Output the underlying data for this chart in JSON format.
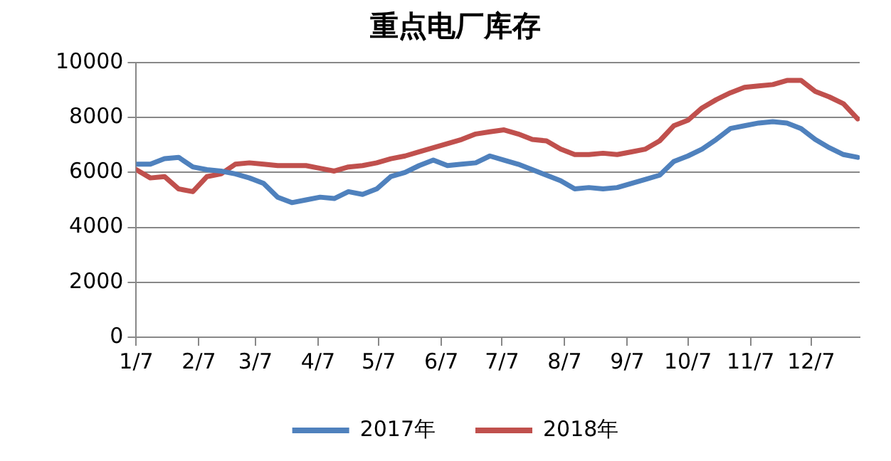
{
  "chart_data": {
    "type": "line",
    "title": "重点电厂库存",
    "x": [
      "--01-07",
      "--01-14",
      "--01-21",
      "--01-28",
      "--02-04",
      "--02-11",
      "--02-18",
      "--02-25",
      "--03-04",
      "--03-11",
      "--03-18",
      "--03-25",
      "--04-01",
      "--04-08",
      "--04-15",
      "--04-22",
      "--04-29",
      "--05-06",
      "--05-13",
      "--05-20",
      "--05-27",
      "--06-03",
      "--06-10",
      "--06-17",
      "--06-24",
      "--07-01",
      "--07-08",
      "--07-15",
      "--07-22",
      "--07-29",
      "--08-05",
      "--08-12",
      "--08-19",
      "--08-26",
      "--09-02",
      "--09-09",
      "--09-16",
      "--09-23",
      "--09-30",
      "--10-07",
      "--10-14",
      "--10-21",
      "--10-28",
      "--11-04",
      "--11-11",
      "--11-18",
      "--11-25",
      "--12-02",
      "--12-09",
      "--12-16",
      "--12-23",
      "--12-30"
    ],
    "series": [
      {
        "name": "2017年",
        "color": "#4f81bd",
        "values": [
          6300,
          6300,
          6500,
          6550,
          6200,
          6100,
          6050,
          5950,
          5800,
          5600,
          5100,
          4900,
          5000,
          5100,
          5050,
          5300,
          5200,
          5400,
          5850,
          6000,
          6250,
          6450,
          6250,
          6300,
          6350,
          6600,
          6450,
          6300,
          6100,
          5900,
          5700,
          5400,
          5450,
          5400,
          5450,
          5600,
          5750,
          5900,
          6400,
          6600,
          6850,
          7200,
          7600,
          7700,
          7800,
          7850,
          7800,
          7600,
          7200,
          6900,
          6650,
          6550
        ]
      },
      {
        "name": "2018年",
        "color": "#c0504d",
        "values": [
          6100,
          5800,
          5850,
          5400,
          5300,
          5850,
          5950,
          6300,
          6350,
          6300,
          6250,
          6250,
          6250,
          6150,
          6050,
          6200,
          6250,
          6350,
          6500,
          6600,
          6750,
          6900,
          7050,
          7200,
          7400,
          7480,
          7550,
          7400,
          7200,
          7150,
          6850,
          6650,
          6650,
          6700,
          6650,
          6750,
          6850,
          7150,
          7700,
          7900,
          8350,
          8650,
          8900,
          9100,
          9150,
          9200,
          9350,
          9350,
          8950,
          8750,
          8500,
          7950
        ]
      }
    ],
    "xlim": [
      "--01-07",
      "--12-31"
    ],
    "xticks": [
      {
        "value": "--01-07",
        "label": "1/7"
      },
      {
        "value": "--02-07",
        "label": "2/7"
      },
      {
        "value": "--03-07",
        "label": "3/7"
      },
      {
        "value": "--04-07",
        "label": "4/7"
      },
      {
        "value": "--05-07",
        "label": "5/7"
      },
      {
        "value": "--06-07",
        "label": "6/7"
      },
      {
        "value": "--07-07",
        "label": "7/7"
      },
      {
        "value": "--08-07",
        "label": "8/7"
      },
      {
        "value": "--09-07",
        "label": "9/7"
      },
      {
        "value": "--10-07",
        "label": "10/7"
      },
      {
        "value": "--11-07",
        "label": "11/7"
      },
      {
        "value": "--12-07",
        "label": "12/7"
      }
    ],
    "ylim": [
      0,
      10000
    ],
    "yticks": [
      0,
      2000,
      4000,
      6000,
      8000,
      10000
    ],
    "grid": "y",
    "legend": "bottom",
    "marker": "none",
    "line_style": "solid"
  }
}
